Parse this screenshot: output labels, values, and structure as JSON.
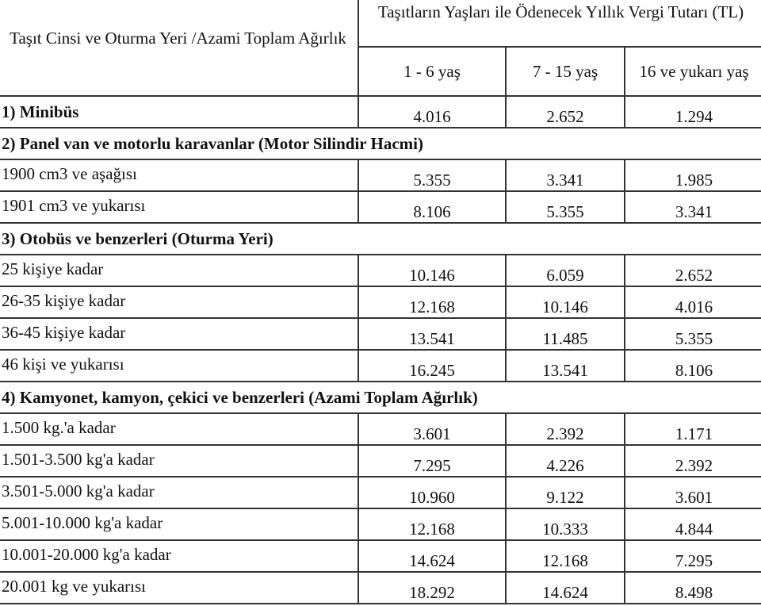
{
  "header": {
    "col_label": "Taşıt Cinsi ve Oturma Yeri /Azami Toplam Ağırlık",
    "group_label": "Taşıtların Yaşları ile Ödenecek Yıllık Vergi Tutarı (TL)",
    "age_columns": [
      "1 - 6 yaş",
      "7 - 15 yaş",
      "16 ve yukarı yaş"
    ]
  },
  "rows": [
    {
      "type": "item_bold",
      "label": "1) Minibüs",
      "values": [
        "4.016",
        "2.652",
        "1.294"
      ]
    },
    {
      "type": "section",
      "label": "2) Panel van ve motorlu karavanlar (Motor Silindir Hacmi)"
    },
    {
      "type": "item",
      "label": "1900 cm3 ve aşağısı",
      "values": [
        "5.355",
        "3.341",
        "1.985"
      ]
    },
    {
      "type": "item",
      "label": "1901 cm3 ve yukarısı",
      "values": [
        "8.106",
        "5.355",
        "3.341"
      ]
    },
    {
      "type": "section",
      "label": "3) Otobüs ve benzerleri (Oturma Yeri)"
    },
    {
      "type": "item",
      "label": "25 kişiye kadar",
      "values": [
        "10.146",
        "6.059",
        "2.652"
      ]
    },
    {
      "type": "item",
      "label": "26-35 kişiye kadar",
      "values": [
        "12.168",
        "10.146",
        "4.016"
      ]
    },
    {
      "type": "item",
      "label": "36-45 kişiye kadar",
      "values": [
        "13.541",
        "11.485",
        "5.355"
      ]
    },
    {
      "type": "item",
      "label": "46 kişi ve yukarısı",
      "values": [
        "16.245",
        "13.541",
        "8.106"
      ]
    },
    {
      "type": "section",
      "label": "4) Kamyonet, kamyon, çekici ve benzerleri (Azami Toplam Ağırlık)"
    },
    {
      "type": "item",
      "label": "1.500 kg.'a kadar",
      "values": [
        "3.601",
        "2.392",
        "1.171"
      ]
    },
    {
      "type": "item",
      "label": "1.501-3.500 kg'a kadar",
      "values": [
        "7.295",
        "4.226",
        "2.392"
      ]
    },
    {
      "type": "item",
      "label": "3.501-5.000 kg'a kadar",
      "values": [
        "10.960",
        "9.122",
        "3.601"
      ]
    },
    {
      "type": "item",
      "label": "5.001-10.000 kg'a kadar",
      "values": [
        "12.168",
        "10.333",
        "4.844"
      ]
    },
    {
      "type": "item",
      "label": "10.001-20.000 kg'a kadar",
      "values": [
        "14.624",
        "12.168",
        "7.295"
      ]
    },
    {
      "type": "item",
      "label": "20.001 kg ve yukarısı",
      "values": [
        "18.292",
        "14.624",
        "8.498"
      ]
    }
  ]
}
